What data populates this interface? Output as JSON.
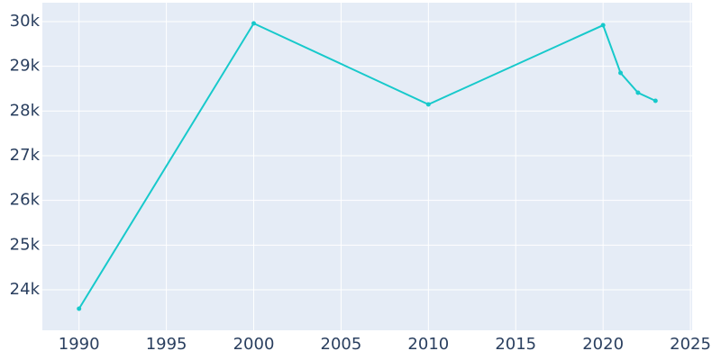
{
  "chart_data": {
    "type": "line",
    "x": [
      1990,
      2000,
      2010,
      2020,
      2021,
      2022,
      2023
    ],
    "series": [
      {
        "color": "#17c9cb",
        "values": [
          23577,
          29960,
          28148,
          29919,
          28852,
          28409,
          28228
        ]
      }
    ],
    "xlim": [
      1987.9,
      2025.1
    ],
    "ylim": [
      23094,
      30423
    ],
    "xticks": [
      1990,
      1995,
      2000,
      2005,
      2010,
      2015,
      2020,
      2025
    ],
    "yticks": [
      {
        "value": 24000,
        "label": "24k"
      },
      {
        "value": 25000,
        "label": "25k"
      },
      {
        "value": 26000,
        "label": "26k"
      },
      {
        "value": 27000,
        "label": "27k"
      },
      {
        "value": 28000,
        "label": "28k"
      },
      {
        "value": 29000,
        "label": "29k"
      },
      {
        "value": 30000,
        "label": "30k"
      }
    ],
    "grid": true,
    "background": "#e5ecf6"
  }
}
